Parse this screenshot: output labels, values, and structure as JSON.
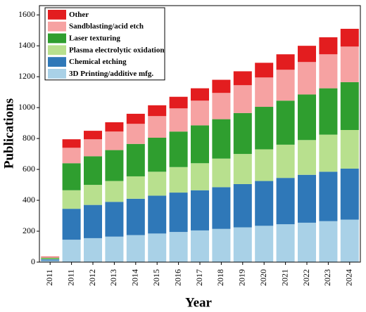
{
  "chart_data": {
    "type": "stacked_bar",
    "x_label": "Year",
    "y_label": "Publications",
    "categories": [
      "2011",
      "2011",
      "2012",
      "2013",
      "2014",
      "2015",
      "2016",
      "2017",
      "2018",
      "2019",
      "2020",
      "2021",
      "2022",
      "2023",
      "2024"
    ],
    "series": [
      {
        "name": "3D Printing/additive mfg.",
        "color": "#a9d1e7",
        "values": [
          10,
          145,
          155,
          165,
          175,
          185,
          195,
          205,
          215,
          225,
          235,
          245,
          255,
          265,
          275
        ]
      },
      {
        "name": "Chemical etching",
        "color": "#2f78b8",
        "values": [
          8,
          200,
          215,
          225,
          235,
          245,
          255,
          260,
          270,
          280,
          290,
          300,
          310,
          320,
          330
        ]
      },
      {
        "name": "Plasma electrolytic oxidation",
        "color": "#b8e08e",
        "values": [
          5,
          120,
          130,
          135,
          145,
          155,
          165,
          175,
          185,
          195,
          205,
          215,
          225,
          240,
          250
        ]
      },
      {
        "name": "Laser texturing",
        "color": "#2f9e2f",
        "values": [
          5,
          175,
          185,
          200,
          210,
          220,
          230,
          245,
          255,
          265,
          275,
          285,
          295,
          300,
          310
        ]
      },
      {
        "name": "Sandblasting/acid etch",
        "color": "#f6a2a2",
        "values": [
          4,
          100,
          110,
          120,
          130,
          140,
          150,
          160,
          170,
          180,
          190,
          200,
          210,
          220,
          230
        ]
      },
      {
        "name": "Other",
        "color": "#e31d1f",
        "values": [
          3,
          55,
          55,
          60,
          65,
          70,
          75,
          80,
          85,
          90,
          95,
          100,
          105,
          110,
          115
        ]
      }
    ],
    "ylim": [
      0,
      1660
    ],
    "yticks": [
      0,
      200,
      400,
      600,
      800,
      1000,
      1200,
      1400,
      1600
    ],
    "grid": false,
    "legend": "upper left"
  }
}
